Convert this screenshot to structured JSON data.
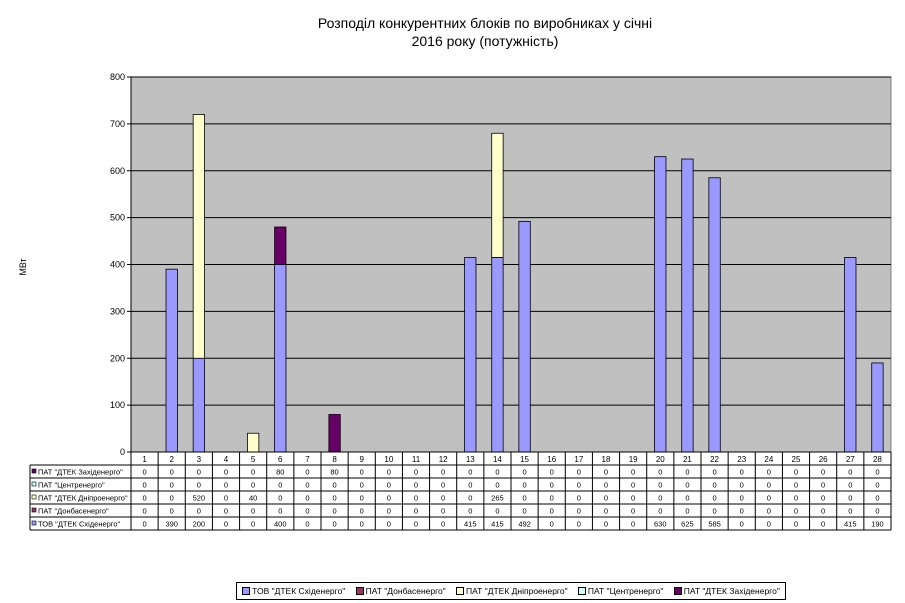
{
  "chart_data": {
    "type": "bar",
    "stacked": true,
    "title": "Розподіл конкурентних блоків по виробниках у січні 2016 року (потужність)",
    "title_lines": [
      "Розподіл конкурентних блоків по виробниках у січні",
      "2016 року (потужність)"
    ],
    "ylabel": "МВт",
    "xlabel": "",
    "ylim": [
      0,
      800
    ],
    "yticks": [
      0,
      100,
      200,
      300,
      400,
      500,
      600,
      700,
      800
    ],
    "grid": true,
    "legend": "bottom",
    "categories": [
      "1",
      "2",
      "3",
      "4",
      "5",
      "6",
      "7",
      "8",
      "9",
      "10",
      "11",
      "12",
      "13",
      "14",
      "15",
      "16",
      "17",
      "18",
      "19",
      "20",
      "21",
      "22",
      "23",
      "24",
      "25",
      "26",
      "27",
      "28"
    ],
    "series": [
      {
        "name": "ТОВ \"ДТЕК Східенерго\"",
        "color": "#9999ff",
        "values": [
          0,
          390,
          200,
          0,
          0,
          400,
          0,
          0,
          0,
          0,
          0,
          0,
          415,
          415,
          492,
          0,
          0,
          0,
          0,
          630,
          625,
          585,
          0,
          0,
          0,
          0,
          415,
          190
        ]
      },
      {
        "name": "ПАТ \"Донбасенерго\"",
        "color": "#993366",
        "values": [
          0,
          0,
          0,
          0,
          0,
          0,
          0,
          0,
          0,
          0,
          0,
          0,
          0,
          0,
          0,
          0,
          0,
          0,
          0,
          0,
          0,
          0,
          0,
          0,
          0,
          0,
          0,
          0
        ]
      },
      {
        "name": "ПАТ \"ДТЕК Дніпроенерго\"",
        "color": "#ffffcc",
        "values": [
          0,
          0,
          520,
          0,
          40,
          0,
          0,
          0,
          0,
          0,
          0,
          0,
          0,
          265,
          0,
          0,
          0,
          0,
          0,
          0,
          0,
          0,
          0,
          0,
          0,
          0,
          0,
          0
        ]
      },
      {
        "name": "ПАТ \"Центренерго\"",
        "color": "#ccffff",
        "values": [
          0,
          0,
          0,
          0,
          0,
          0,
          0,
          0,
          0,
          0,
          0,
          0,
          0,
          0,
          0,
          0,
          0,
          0,
          0,
          0,
          0,
          0,
          0,
          0,
          0,
          0,
          0,
          0
        ]
      },
      {
        "name": "ПАТ \"ДТЕК Західенерго\"",
        "color": "#660066",
        "values": [
          0,
          0,
          0,
          0,
          0,
          80,
          0,
          80,
          0,
          0,
          0,
          0,
          0,
          0,
          0,
          0,
          0,
          0,
          0,
          0,
          0,
          0,
          0,
          0,
          0,
          0,
          0,
          0
        ]
      }
    ],
    "table_rows_order": [
      4,
      3,
      2,
      1,
      0
    ]
  },
  "colors": {
    "plot_background": "#c0c0c0",
    "gridline": "#000000"
  }
}
